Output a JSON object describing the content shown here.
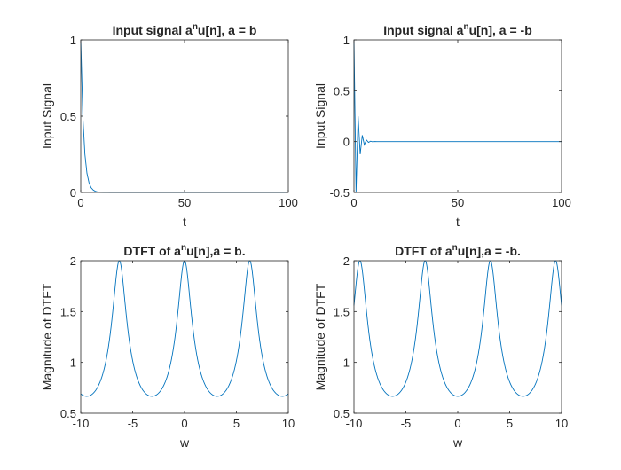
{
  "figure": {
    "background": "#ffffff",
    "line_color": "#0072bd",
    "axis_color": "#262626"
  },
  "chart_data": [
    {
      "type": "line",
      "title_main": "Input signal a",
      "title_sup": "n",
      "title_rest": "u[n], a = b",
      "xlabel": "t",
      "ylabel": "Input Signal",
      "xlim": [
        0,
        100
      ],
      "ylim": [
        0,
        1
      ],
      "xticks": [
        "0",
        "50",
        "100"
      ],
      "yticks": [
        "0",
        "0.5",
        "1"
      ],
      "series": [
        {
          "signal": "a^n u[n]",
          "a": 0.5,
          "n_range": [
            0,
            100
          ]
        }
      ]
    },
    {
      "type": "line",
      "title_main": "Input signal a",
      "title_sup": "n",
      "title_rest": "u[n], a = -b",
      "xlabel": "t",
      "ylabel": "Input Signal",
      "xlim": [
        0,
        100
      ],
      "ylim": [
        -0.5,
        1
      ],
      "xticks": [
        "0",
        "50",
        "100"
      ],
      "yticks": [
        "-0.5",
        "0",
        "0.5",
        "1"
      ],
      "series": [
        {
          "signal": "a^n u[n]",
          "a": -0.5,
          "n_range": [
            0,
            100
          ]
        }
      ]
    },
    {
      "type": "line",
      "title_main": "DTFT of a",
      "title_sup": "n",
      "title_rest": "u[n],a = b.",
      "xlabel": "w",
      "ylabel": "Magnitude of DTFT",
      "xlim": [
        -10,
        10
      ],
      "ylim": [
        0.5,
        2
      ],
      "xticks": [
        "-10",
        "-5",
        "0",
        "5",
        "10"
      ],
      "yticks": [
        "0.5",
        "1",
        "1.5",
        "2"
      ],
      "series": [
        {
          "signal": "|1/(1 - a e^{-jw})|",
          "a": 0.5,
          "w_range": [
            -10,
            10
          ]
        }
      ]
    },
    {
      "type": "line",
      "title_main": "DTFT of a",
      "title_sup": "n",
      "title_rest": "u[n],a = -b.",
      "xlabel": "w",
      "ylabel": "Magnitude of DTFT",
      "xlim": [
        -10,
        10
      ],
      "ylim": [
        0.5,
        2
      ],
      "xticks": [
        "-10",
        "-5",
        "0",
        "5",
        "10"
      ],
      "yticks": [
        "0.5",
        "1",
        "1.5",
        "2"
      ],
      "series": [
        {
          "signal": "|1/(1 - a e^{-jw})|",
          "a": -0.5,
          "w_range": [
            -10,
            10
          ]
        }
      ]
    }
  ]
}
